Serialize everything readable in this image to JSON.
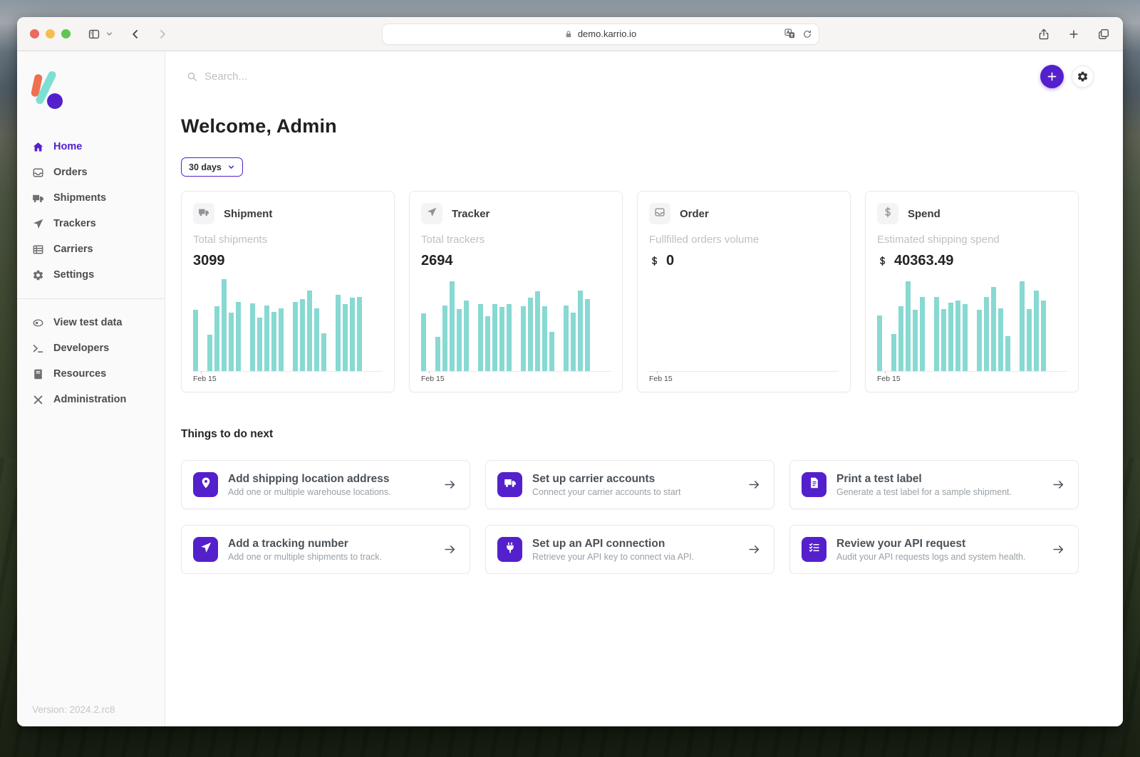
{
  "colors": {
    "accent": "#5420cc",
    "bar": "#87d9d2",
    "logo_orange": "#ee7050",
    "logo_teal": "#7cdfd3"
  },
  "browser": {
    "url": "demo.karrio.io",
    "lock_icon": "lock-icon",
    "toolbar_icons_left": [
      "sidebar-toggle-icon",
      "chevron-down-icon",
      "back-icon",
      "forward-icon"
    ],
    "urlbar_icons": [
      "translate-icon",
      "reload-icon"
    ],
    "toolbar_icons_right": [
      "share-icon",
      "new-tab-icon",
      "tabs-icon"
    ]
  },
  "sidebar": {
    "items": [
      {
        "label": "Home",
        "icon": "home-icon",
        "active": true
      },
      {
        "label": "Orders",
        "icon": "inbox-icon",
        "active": false
      },
      {
        "label": "Shipments",
        "icon": "truck-icon",
        "active": false
      },
      {
        "label": "Trackers",
        "icon": "navigation-icon",
        "active": false
      },
      {
        "label": "Carriers",
        "icon": "table-icon",
        "active": false
      },
      {
        "label": "Settings",
        "icon": "gear-icon",
        "active": false
      }
    ],
    "secondary_items": [
      {
        "label": "View test data",
        "icon": "eye-icon"
      },
      {
        "label": "Developers",
        "icon": "terminal-icon"
      },
      {
        "label": "Resources",
        "icon": "book-icon"
      },
      {
        "label": "Administration",
        "icon": "tools-icon"
      }
    ],
    "version": "Version: 2024.2.rc8"
  },
  "topbar": {
    "search_placeholder": "Search...",
    "add_button_icon": "plus-icon",
    "settings_button_icon": "gear-icon"
  },
  "main": {
    "welcome": "Welcome, Admin",
    "period_filter": "30 days",
    "todo_heading": "Things to do next",
    "todo_cards": [
      {
        "title": "Add shipping location address",
        "description": "Add one or multiple warehouse locations.",
        "icon": "map-pin-icon"
      },
      {
        "title": "Set up carrier accounts",
        "description": "Connect your carrier accounts to start",
        "icon": "truck-icon"
      },
      {
        "title": "Print a test label",
        "description": "Generate a test label for a sample shipment.",
        "icon": "document-icon"
      },
      {
        "title": "Add a tracking number",
        "description": "Add one or multiple shipments to track.",
        "icon": "navigation-icon"
      },
      {
        "title": "Set up an API connection",
        "description": "Retrieve your API key to connect via API.",
        "icon": "plug-icon"
      },
      {
        "title": "Review your API request",
        "description": "Audit your API requests logs and system health.",
        "icon": "checklist-icon"
      }
    ]
  },
  "chart_data": [
    {
      "type": "bar",
      "title": "Shipment",
      "icon": "truck-icon",
      "subtitle": "Total shipments",
      "value": "3099",
      "show_currency": false,
      "xlabel": "Feb 15",
      "ylabel": "",
      "y_axis": "unlabeled (relative heights, % of plot)",
      "values": [
        66,
        null,
        39,
        70,
        99,
        63,
        75,
        null,
        73,
        58,
        71,
        64,
        68,
        null,
        75,
        78,
        87,
        68,
        41,
        null,
        82,
        72,
        79,
        80
      ]
    },
    {
      "type": "bar",
      "title": "Tracker",
      "icon": "navigation-icon",
      "subtitle": "Total trackers",
      "value": "2694",
      "show_currency": false,
      "xlabel": "Feb 15",
      "ylabel": "",
      "y_axis": "unlabeled (relative heights, % of plot)",
      "values": [
        62,
        null,
        37,
        71,
        97,
        67,
        76,
        null,
        72,
        59,
        72,
        69,
        72,
        null,
        70,
        79,
        86,
        70,
        42,
        null,
        71,
        63,
        87,
        78
      ]
    },
    {
      "type": "bar",
      "title": "Order",
      "icon": "inbox-icon",
      "subtitle": "Fullfilled orders volume",
      "value": "0",
      "show_currency": true,
      "xlabel": "Feb 15",
      "ylabel": "",
      "y_axis": "unlabeled (no data shown)",
      "values": []
    },
    {
      "type": "bar",
      "title": "Spend",
      "icon": "dollar-icon",
      "subtitle": "Estimated shipping spend",
      "value": "40363.49",
      "show_currency": true,
      "xlabel": "Feb 15",
      "ylabel": "",
      "y_axis": "unlabeled (relative heights, % of plot)",
      "values": [
        60,
        null,
        40,
        70,
        97,
        66,
        80,
        null,
        80,
        67,
        74,
        76,
        72,
        null,
        66,
        80,
        91,
        68,
        38,
        null,
        97,
        67,
        87,
        76
      ]
    }
  ]
}
